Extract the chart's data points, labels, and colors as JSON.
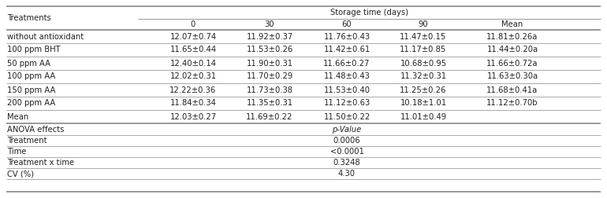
{
  "col_header_top": "Storage time (days)",
  "col_header_sub": [
    "0",
    "30",
    "60",
    "90",
    "Mean"
  ],
  "row_header": "Treatments",
  "rows": [
    [
      "without antioxidant",
      "12.07±0.74",
      "11.92±0.37",
      "11.76±0.43",
      "11.47±0.15",
      "11.81±0.26a"
    ],
    [
      "100 ppm BHT",
      "11.65±0.44",
      "11.53±0.26",
      "11.42±0.61",
      "11.17±0.85",
      "11.44±0.20a"
    ],
    [
      "50 ppm AA",
      "12.40±0.14",
      "11.90±0.31",
      "11.66±0.27",
      "10.68±0.95",
      "11.66±0.72a"
    ],
    [
      "100 ppm AA",
      "12.02±0.31",
      "11.70±0.29",
      "11.48±0.43",
      "11.32±0.31",
      "11.63±0.30a"
    ],
    [
      "150 ppm AA",
      "12.22±0.36",
      "11.73±0.38",
      "11.53±0.40",
      "11.25±0.26",
      "11.68±0.41a"
    ],
    [
      "200 ppm AA",
      "11.84±0.34",
      "11.35±0.31",
      "11.12±0.63",
      "10.18±1.01",
      "11.12±0.70b"
    ]
  ],
  "mean_row": [
    "Mean",
    "12.03±0.27",
    "11.69±0.22",
    "11.50±0.22",
    "11.01±0.49",
    ""
  ],
  "anova_rows": [
    [
      "ANOVA effects",
      "p-Value"
    ],
    [
      "Treatment",
      "0.0006"
    ],
    [
      "Time",
      "<0.0001"
    ],
    [
      "Treatment x time",
      "0.3248"
    ],
    [
      "CV (%)",
      "4.30"
    ]
  ],
  "background_color": "#ffffff",
  "text_color": "#222222",
  "font_size": 7.2,
  "line_color": "#888888"
}
